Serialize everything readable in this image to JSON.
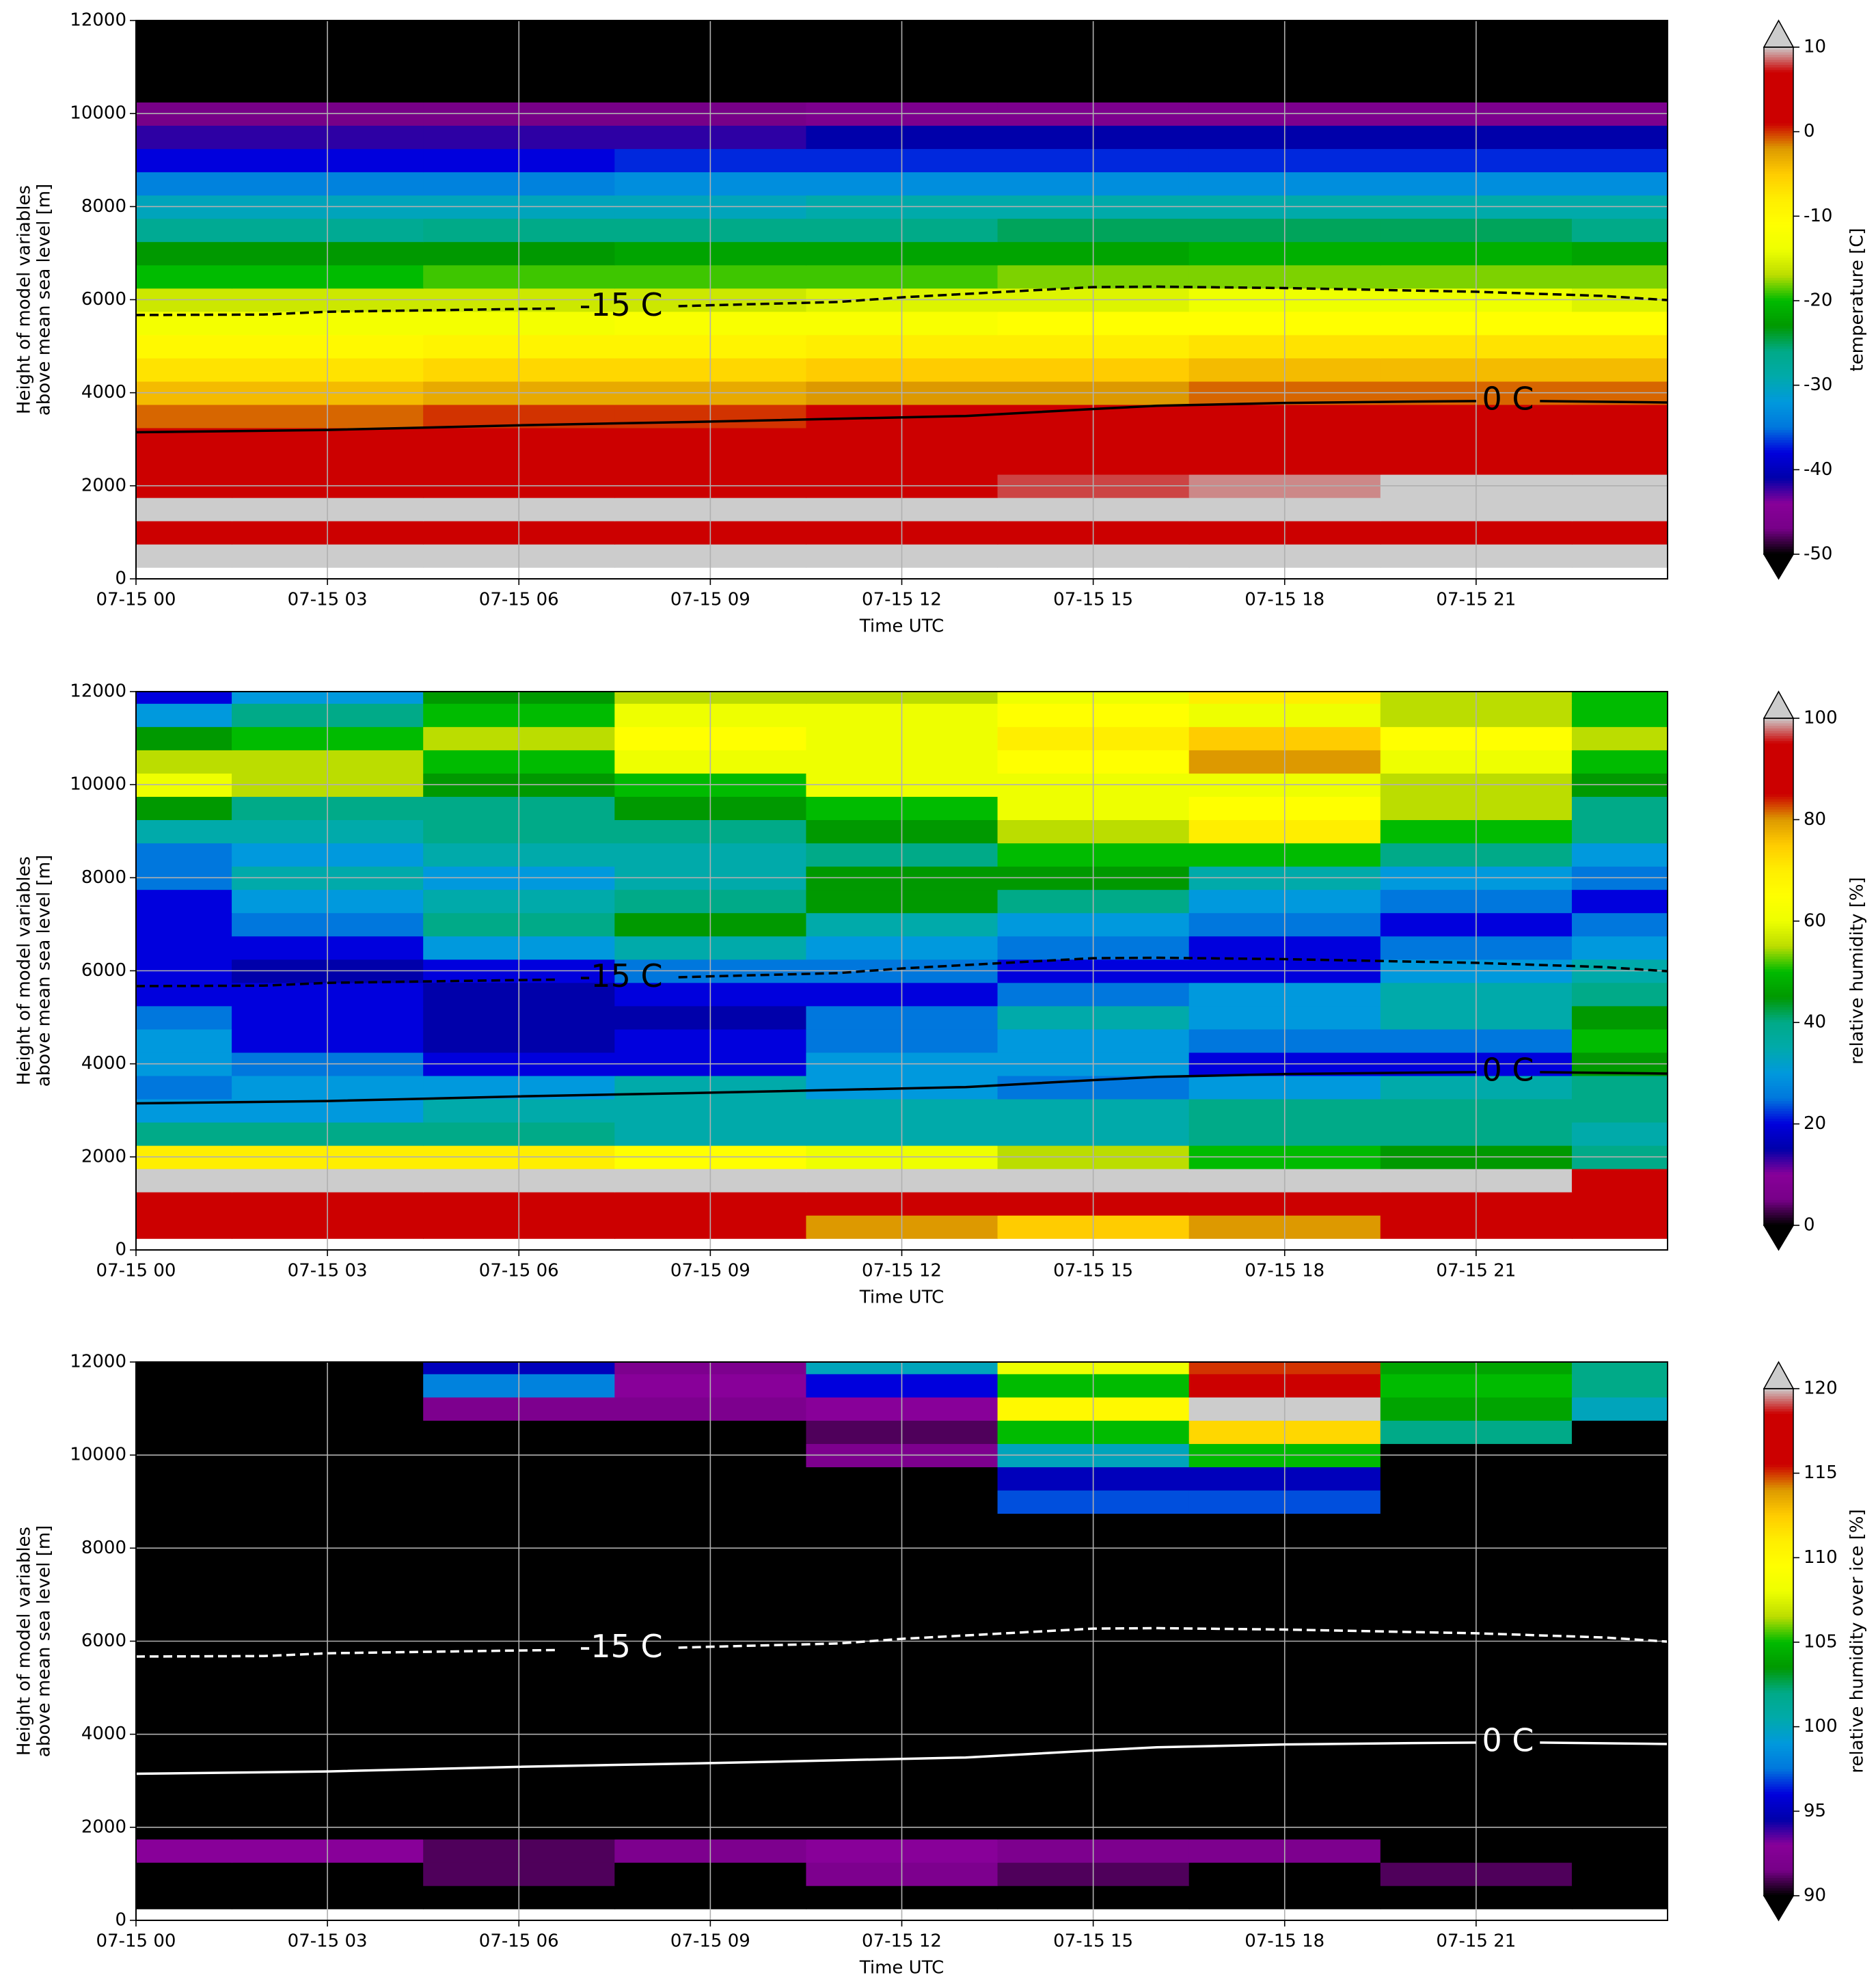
{
  "chart_data": [
    {
      "type": "heatmap",
      "colormap": "nipy_spectral",
      "xlabel": "Time UTC",
      "ylabel": [
        "Height of model variables",
        "above mean sea level [m]"
      ],
      "colorbar_label": "temperature [C]",
      "xlim": [
        0,
        24
      ],
      "ylim": [
        0,
        12000
      ],
      "grid": true,
      "xticks": [
        {
          "value": 0,
          "label": "07-15 00"
        },
        {
          "value": 3,
          "label": "07-15 03"
        },
        {
          "value": 6,
          "label": "07-15 06"
        },
        {
          "value": 9,
          "label": "07-15 09"
        },
        {
          "value": 12,
          "label": "07-15 12"
        },
        {
          "value": 15,
          "label": "07-15 15"
        },
        {
          "value": 18,
          "label": "07-15 18"
        },
        {
          "value": 21,
          "label": "07-15 21"
        }
      ],
      "yticks": [
        0,
        2000,
        4000,
        6000,
        8000,
        10000,
        12000
      ],
      "clim": [
        -50,
        10
      ],
      "cticks": [
        -50,
        -40,
        -30,
        -20,
        -10,
        0,
        10
      ],
      "x": [
        0,
        3,
        6,
        9,
        12,
        15,
        18,
        21,
        24
      ],
      "y": [
        500,
        1000,
        1500,
        2000,
        2500,
        3000,
        3500,
        4000,
        4500,
        5000,
        5500,
        6000,
        6500,
        7000,
        7500,
        8000,
        8500,
        9000,
        9500,
        10000,
        10500,
        11000,
        11500,
        12000
      ],
      "z": [
        [
          12,
          12,
          12,
          12,
          12,
          12,
          12,
          12,
          12
        ],
        [
          5,
          5,
          6,
          6,
          6,
          6,
          6,
          7,
          7
        ],
        [
          11,
          11,
          11,
          11,
          11,
          11,
          11,
          11,
          11
        ],
        [
          7,
          7,
          7,
          7,
          7,
          8,
          9,
          11,
          11
        ],
        [
          5,
          5,
          5,
          5,
          5,
          6,
          6,
          7,
          7
        ],
        [
          2,
          2,
          3,
          3,
          3,
          4,
          4,
          4,
          4
        ],
        [
          -1,
          -1,
          0,
          0,
          1,
          1,
          2,
          2,
          2
        ],
        [
          -4,
          -4,
          -3,
          -3,
          -2,
          -2,
          -1,
          -1,
          -1
        ],
        [
          -7,
          -7,
          -6,
          -6,
          -5,
          -5,
          -4,
          -4,
          -4
        ],
        [
          -10,
          -10,
          -9,
          -9,
          -8,
          -8,
          -7,
          -7,
          -7
        ],
        [
          -13,
          -13,
          -13,
          -12,
          -12,
          -11,
          -11,
          -11,
          -11
        ],
        [
          -16,
          -16,
          -16,
          -16,
          -15,
          -15,
          -14,
          -14,
          -15
        ],
        [
          -20,
          -20,
          -19,
          -19,
          -19,
          -18,
          -18,
          -18,
          -18
        ],
        [
          -23,
          -23,
          -23,
          -22,
          -22,
          -22,
          -21,
          -21,
          -22
        ],
        [
          -27,
          -27,
          -26,
          -26,
          -26,
          -25,
          -25,
          -25,
          -26
        ],
        [
          -30,
          -30,
          -30,
          -30,
          -29,
          -29,
          -29,
          -29,
          -29
        ],
        [
          -34,
          -34,
          -34,
          -33,
          -33,
          -33,
          -33,
          -33,
          -33
        ],
        [
          -38,
          -38,
          -38,
          -37,
          -37,
          -37,
          -37,
          -37,
          -37
        ],
        [
          -42,
          -42,
          -42,
          -42,
          -41,
          -41,
          -41,
          -41,
          -41
        ],
        [
          -47,
          -47,
          -47,
          -47,
          -46,
          -46,
          -46,
          -46,
          -46
        ],
        [
          -55,
          -55,
          -55,
          -55,
          -55,
          -55,
          -55,
          -55,
          -55
        ],
        [
          -55,
          -55,
          -55,
          -55,
          -55,
          -55,
          -55,
          -55,
          -55
        ],
        [
          -55,
          -55,
          -55,
          -55,
          -55,
          -55,
          -55,
          -55,
          -55
        ],
        [
          -55,
          -55,
          -55,
          -55,
          -55,
          -55,
          -55,
          -55,
          -55
        ]
      ],
      "contours": [
        {
          "name": "-15 C",
          "color": "#000000",
          "style": "dashed",
          "x": [
            0,
            2,
            3,
            6,
            6.6,
            7.6,
            8.5,
            9,
            11,
            12,
            15,
            16,
            18,
            21,
            23,
            24
          ],
          "y": [
            5670,
            5680,
            5740,
            5800,
            5810,
            null,
            5860,
            5880,
            5950,
            6050,
            6270,
            6280,
            6250,
            6170,
            6080,
            5990
          ]
        },
        {
          "name": "0 C",
          "color": "#000000",
          "style": "solid",
          "x": [
            0,
            3,
            6,
            9,
            13,
            15,
            16,
            18,
            20,
            21,
            21.5,
            22,
            24
          ],
          "y": [
            3150,
            3200,
            3300,
            3380,
            3500,
            3650,
            3720,
            3780,
            3810,
            3820,
            null,
            3820,
            3790
          ]
        }
      ]
    },
    {
      "type": "heatmap",
      "colormap": "nipy_spectral",
      "xlabel": "Time UTC",
      "ylabel": [
        "Height of model variables",
        "above mean sea level [m]"
      ],
      "colorbar_label": "relative humidity [%]",
      "xlim": [
        0,
        24
      ],
      "ylim": [
        0,
        12000
      ],
      "grid": true,
      "xticks": [
        {
          "value": 0,
          "label": "07-15 00"
        },
        {
          "value": 3,
          "label": "07-15 03"
        },
        {
          "value": 6,
          "label": "07-15 06"
        },
        {
          "value": 9,
          "label": "07-15 09"
        },
        {
          "value": 12,
          "label": "07-15 12"
        },
        {
          "value": 15,
          "label": "07-15 15"
        },
        {
          "value": 18,
          "label": "07-15 18"
        },
        {
          "value": 21,
          "label": "07-15 21"
        }
      ],
      "yticks": [
        0,
        2000,
        4000,
        6000,
        8000,
        10000,
        12000
      ],
      "clim": [
        0,
        100
      ],
      "cticks": [
        0,
        20,
        40,
        60,
        80,
        100
      ],
      "x": [
        0,
        3,
        6,
        9,
        12,
        15,
        18,
        21,
        24
      ],
      "y": [
        500,
        1000,
        1500,
        2000,
        2500,
        3000,
        3500,
        4000,
        4500,
        5000,
        5500,
        6000,
        6500,
        7000,
        7500,
        8000,
        8500,
        9000,
        9500,
        10000,
        10500,
        11000,
        11500,
        12000
      ],
      "z": [
        [
          90,
          90,
          90,
          85,
          80,
          75,
          80,
          85,
          85
        ],
        [
          90,
          95,
          95,
          90,
          90,
          92,
          92,
          92,
          90
        ],
        [
          100,
          100,
          100,
          100,
          100,
          100,
          100,
          100,
          95
        ],
        [
          70,
          70,
          70,
          65,
          60,
          55,
          50,
          45,
          40
        ],
        [
          40,
          40,
          40,
          35,
          35,
          35,
          40,
          40,
          35
        ],
        [
          30,
          30,
          35,
          35,
          35,
          35,
          40,
          40,
          40
        ],
        [
          25,
          30,
          30,
          35,
          30,
          25,
          30,
          35,
          40
        ],
        [
          30,
          25,
          20,
          20,
          30,
          30,
          20,
          20,
          45
        ],
        [
          30,
          20,
          15,
          20,
          25,
          30,
          25,
          25,
          50
        ],
        [
          25,
          20,
          15,
          15,
          25,
          35,
          30,
          35,
          45
        ],
        [
          20,
          20,
          15,
          20,
          20,
          25,
          30,
          35,
          40
        ],
        [
          20,
          15,
          20,
          25,
          25,
          20,
          20,
          30,
          35
        ],
        [
          20,
          20,
          30,
          35,
          30,
          25,
          20,
          25,
          30
        ],
        [
          20,
          25,
          40,
          45,
          35,
          30,
          25,
          20,
          25
        ],
        [
          20,
          30,
          35,
          40,
          45,
          40,
          30,
          25,
          20
        ],
        [
          25,
          35,
          30,
          35,
          45,
          45,
          35,
          30,
          25
        ],
        [
          25,
          30,
          35,
          35,
          40,
          50,
          50,
          40,
          30
        ],
        [
          35,
          35,
          40,
          40,
          45,
          55,
          70,
          50,
          40
        ],
        [
          45,
          40,
          40,
          45,
          50,
          60,
          65,
          55,
          40
        ],
        [
          60,
          55,
          45,
          50,
          60,
          60,
          60,
          55,
          45
        ],
        [
          55,
          55,
          50,
          60,
          60,
          65,
          80,
          60,
          50
        ],
        [
          45,
          50,
          55,
          65,
          60,
          70,
          75,
          65,
          55
        ],
        [
          30,
          40,
          50,
          60,
          60,
          65,
          60,
          55,
          50
        ],
        [
          20,
          30,
          45,
          55,
          55,
          60,
          70,
          55,
          50
        ]
      ],
      "contours": [
        {
          "name": "-15 C",
          "color": "#000000",
          "style": "dashed",
          "x": [
            0,
            2,
            3,
            6,
            6.6,
            7.6,
            8.5,
            9,
            11,
            12,
            15,
            16,
            18,
            21,
            23,
            24
          ],
          "y": [
            5670,
            5680,
            5740,
            5800,
            5810,
            null,
            5860,
            5880,
            5950,
            6050,
            6270,
            6280,
            6250,
            6170,
            6080,
            5990
          ]
        },
        {
          "name": "0 C",
          "color": "#000000",
          "style": "solid",
          "x": [
            0,
            3,
            6,
            9,
            13,
            15,
            16,
            18,
            20,
            21,
            21.5,
            22,
            24
          ],
          "y": [
            3150,
            3200,
            3300,
            3380,
            3500,
            3650,
            3720,
            3780,
            3810,
            3820,
            null,
            3820,
            3790
          ]
        }
      ]
    },
    {
      "type": "heatmap",
      "colormap": "nipy_spectral",
      "xlabel": "Time UTC",
      "ylabel": [
        "Height of model variables",
        "above mean sea level [m]"
      ],
      "colorbar_label": "relative humidity over ice [%]",
      "xlim": [
        0,
        24
      ],
      "ylim": [
        0,
        12000
      ],
      "grid": true,
      "xticks": [
        {
          "value": 0,
          "label": "07-15 00"
        },
        {
          "value": 3,
          "label": "07-15 03"
        },
        {
          "value": 6,
          "label": "07-15 06"
        },
        {
          "value": 9,
          "label": "07-15 09"
        },
        {
          "value": 12,
          "label": "07-15 12"
        },
        {
          "value": 15,
          "label": "07-15 15"
        },
        {
          "value": 18,
          "label": "07-15 18"
        },
        {
          "value": 21,
          "label": "07-15 21"
        }
      ],
      "yticks": [
        0,
        2000,
        4000,
        6000,
        8000,
        10000,
        12000
      ],
      "clim": [
        90,
        120
      ],
      "cticks": [
        90,
        95,
        100,
        105,
        110,
        115,
        120
      ],
      "x": [
        0,
        3,
        6,
        9,
        12,
        15,
        18,
        21,
        24
      ],
      "y": [
        500,
        1000,
        1500,
        2000,
        2500,
        3000,
        3500,
        4000,
        4500,
        5000,
        5500,
        6000,
        6500,
        7000,
        7500,
        8000,
        8500,
        9000,
        9500,
        10000,
        10500,
        11000,
        11500,
        12000
      ],
      "z": [
        [
          80,
          80,
          80,
          80,
          80,
          80,
          80,
          80,
          80
        ],
        [
          80,
          80,
          91,
          90,
          92,
          91,
          90,
          91,
          80
        ],
        [
          93,
          93,
          91,
          92,
          93,
          92,
          92,
          80,
          80
        ],
        [
          80,
          80,
          80,
          80,
          80,
          80,
          80,
          80,
          80
        ],
        [
          80,
          80,
          80,
          80,
          80,
          80,
          80,
          80,
          80
        ],
        [
          80,
          80,
          80,
          80,
          80,
          80,
          80,
          80,
          80
        ],
        [
          80,
          80,
          80,
          80,
          80,
          80,
          80,
          80,
          80
        ],
        [
          80,
          80,
          80,
          80,
          80,
          80,
          80,
          80,
          80
        ],
        [
          80,
          80,
          80,
          80,
          80,
          80,
          80,
          80,
          80
        ],
        [
          80,
          80,
          80,
          80,
          80,
          80,
          80,
          80,
          80
        ],
        [
          80,
          80,
          80,
          80,
          80,
          80,
          80,
          80,
          80
        ],
        [
          80,
          80,
          80,
          80,
          80,
          80,
          80,
          80,
          80
        ],
        [
          80,
          80,
          80,
          80,
          80,
          80,
          80,
          80,
          80
        ],
        [
          80,
          80,
          80,
          80,
          80,
          80,
          80,
          80,
          80
        ],
        [
          80,
          80,
          80,
          80,
          80,
          80,
          80,
          80,
          80
        ],
        [
          80,
          80,
          80,
          80,
          80,
          80,
          80,
          80,
          80
        ],
        [
          80,
          80,
          80,
          80,
          80,
          80,
          80,
          80,
          80
        ],
        [
          80,
          80,
          80,
          80,
          80,
          97,
          97,
          80,
          80
        ],
        [
          80,
          80,
          80,
          80,
          80,
          95,
          95,
          80,
          80
        ],
        [
          80,
          80,
          80,
          80,
          92,
          100,
          105,
          80,
          80
        ],
        [
          80,
          80,
          80,
          80,
          91,
          105,
          112,
          102,
          80
        ],
        [
          80,
          80,
          92,
          92,
          93,
          110,
          120,
          104,
          100
        ],
        [
          80,
          80,
          98,
          93,
          96,
          105,
          118,
          105,
          102
        ],
        [
          80,
          80,
          95,
          92,
          100,
          108,
          115,
          104,
          102
        ]
      ],
      "contours": [
        {
          "name": "-15 C",
          "color": "#ffffff",
          "style": "dashed",
          "x": [
            0,
            2,
            3,
            6,
            6.6,
            7.6,
            8.5,
            9,
            11,
            12,
            15,
            16,
            18,
            21,
            23,
            24
          ],
          "y": [
            5670,
            5680,
            5740,
            5800,
            5810,
            null,
            5860,
            5880,
            5950,
            6050,
            6270,
            6280,
            6250,
            6170,
            6080,
            5990
          ]
        },
        {
          "name": "0 C",
          "color": "#ffffff",
          "style": "solid",
          "x": [
            0,
            3,
            6,
            9,
            13,
            15,
            16,
            18,
            20,
            21,
            21.5,
            22,
            24
          ],
          "y": [
            3150,
            3200,
            3300,
            3380,
            3500,
            3650,
            3720,
            3780,
            3810,
            3820,
            null,
            3820,
            3790
          ]
        }
      ]
    }
  ]
}
